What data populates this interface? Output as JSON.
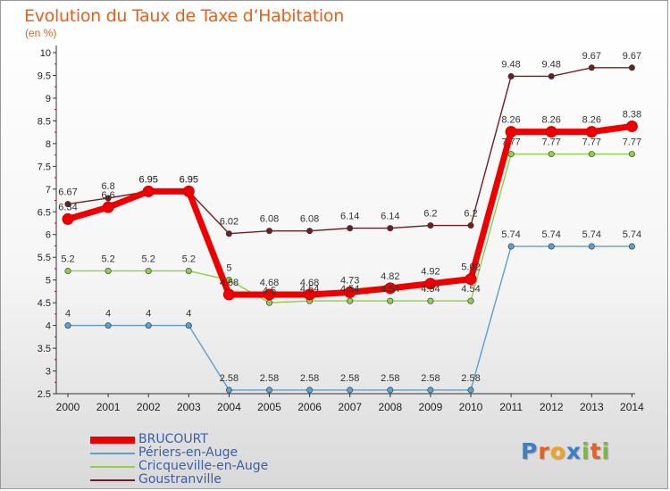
{
  "title": "Evolution du Taux de Taxe d’Habitation",
  "subtitle": "(en %)",
  "logo": {
    "text": "Proxiti",
    "colors": [
      "#3a7fc8",
      "#e8601c",
      "#f2a21d",
      "#3a7fc8",
      "#7cb83a",
      "#e8601c",
      "#7cb83a"
    ]
  },
  "chart_data": {
    "type": "line",
    "x": [
      "2000",
      "2001",
      "2002",
      "2003",
      "2004",
      "2005",
      "2006",
      "2007",
      "2008",
      "2009",
      "2010",
      "2011",
      "2012",
      "2013",
      "2014"
    ],
    "ylim": [
      2.5,
      10
    ],
    "yticks": [
      "2.5",
      "3",
      "3.5",
      "4",
      "4.5",
      "5",
      "5.5",
      "6",
      "6.5",
      "7",
      "7.5",
      "8",
      "8.5",
      "9",
      "9.5",
      "10"
    ],
    "grid": false,
    "legend_position": "bottom-left",
    "series": [
      {
        "name": "Goustranville",
        "color": "#6e1f22",
        "values": [
          6.67,
          6.8,
          6.95,
          6.95,
          6.02,
          6.08,
          6.08,
          6.14,
          6.14,
          6.2,
          6.2,
          9.48,
          9.48,
          9.67,
          9.67
        ],
        "labels": [
          "6.67",
          "6.8",
          "6.95",
          "6.95",
          "6.02",
          "6.08",
          "6.08",
          "6.14",
          "6.14",
          "6.2",
          "6.2",
          "9.48",
          "9.48",
          "9.67",
          "9.67"
        ]
      },
      {
        "name": "Cricqueville-en-Auge",
        "color": "#8ed04a",
        "values": [
          5.2,
          5.2,
          5.2,
          5.2,
          5,
          4.5,
          4.54,
          4.54,
          4.54,
          4.54,
          4.54,
          7.77,
          7.77,
          7.77,
          7.77
        ],
        "labels": [
          "5.2",
          "5.2",
          "5.2",
          "5.2",
          "5",
          "4.5",
          "4.54",
          "4.54",
          "4.54",
          "4.54",
          "4.54",
          "7.77",
          "7.77",
          "7.77",
          "7.77"
        ]
      },
      {
        "name": "Périers-en-Auge",
        "color": "#5aa0d0",
        "values": [
          4,
          4,
          4,
          4,
          2.58,
          2.58,
          2.58,
          2.58,
          2.58,
          2.58,
          2.58,
          5.74,
          5.74,
          5.74,
          5.74
        ],
        "labels": [
          "4",
          "4",
          "4",
          "4",
          "2.58",
          "2.58",
          "2.58",
          "2.58",
          "2.58",
          "2.58",
          "2.58",
          "5.74",
          "5.74",
          "5.74",
          "5.74"
        ]
      },
      {
        "name": "BRUCOURT",
        "color": "#ee0000",
        "values": [
          6.34,
          6.6,
          6.95,
          6.95,
          4.68,
          4.68,
          4.68,
          4.73,
          4.82,
          4.92,
          5.02,
          8.26,
          8.26,
          8.26,
          8.38
        ],
        "labels": [
          "6.34",
          "6.6",
          "6.95",
          "6.95",
          "4.68",
          "4.68",
          "4.68",
          "4.73",
          "4.82",
          "4.92",
          "5.02",
          "8.26",
          "8.26",
          "8.26",
          "8.38"
        ]
      }
    ],
    "legend_order": [
      "BRUCOURT",
      "Périers-en-Auge",
      "Cricqueville-en-Auge",
      "Goustranville"
    ]
  }
}
